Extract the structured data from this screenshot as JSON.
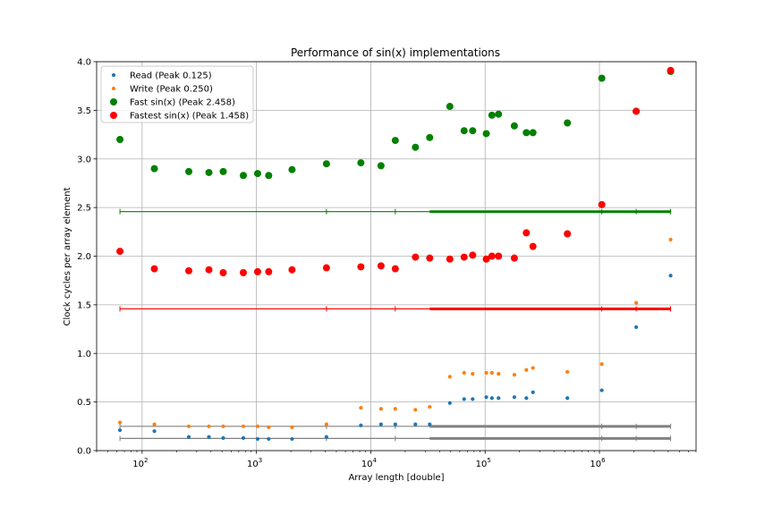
{
  "chart_data": {
    "type": "scatter",
    "title": "Performance of sin(x) implementations",
    "xlabel": "Array length [double]",
    "ylabel": "Clock cycles per array element",
    "xscale": "log",
    "xlim": [
      40,
      7000000
    ],
    "ylim": [
      0,
      4.0
    ],
    "yticks": [
      "0.0",
      "0.5",
      "1.0",
      "1.5",
      "2.0",
      "2.5",
      "3.0",
      "3.5",
      "4.0"
    ],
    "xticks": [
      {
        "value": 100,
        "base": "10",
        "exp": "2"
      },
      {
        "value": 1000,
        "base": "10",
        "exp": "3"
      },
      {
        "value": 10000,
        "base": "10",
        "exp": "4"
      },
      {
        "value": 100000,
        "base": "10",
        "exp": "5"
      },
      {
        "value": 1000000,
        "base": "10",
        "exp": "6"
      }
    ],
    "grid": true,
    "legend_position": "top-left",
    "x": [
      64,
      128,
      256,
      384,
      512,
      768,
      1024,
      1280,
      2048,
      4096,
      8192,
      12288,
      16384,
      24576,
      32768,
      49152,
      65536,
      77824,
      102400,
      114688,
      131072,
      180224,
      229376,
      262144,
      524288,
      1048576,
      2097152,
      4194304
    ],
    "series": [
      {
        "name": "Read (Peak 0.125)",
        "color": "#1f77b4",
        "marker": "small",
        "values": [
          0.21,
          0.2,
          0.14,
          0.14,
          0.13,
          0.13,
          0.12,
          0.12,
          0.12,
          0.14,
          0.26,
          0.27,
          0.27,
          0.27,
          0.27,
          0.49,
          0.53,
          0.53,
          0.55,
          0.54,
          0.54,
          0.55,
          0.54,
          0.6,
          0.54,
          0.62,
          1.27,
          1.8
        ],
        "peak": 0.125
      },
      {
        "name": "Write (Peak 0.250)",
        "color": "#ff7f0e",
        "marker": "small",
        "values": [
          0.29,
          0.27,
          0.25,
          0.25,
          0.25,
          0.25,
          0.25,
          0.24,
          0.24,
          0.27,
          0.44,
          0.43,
          0.43,
          0.42,
          0.45,
          0.76,
          0.8,
          0.79,
          0.8,
          0.8,
          0.79,
          0.78,
          0.83,
          0.85,
          0.81,
          0.89,
          1.52,
          2.17
        ],
        "peak": 0.25
      },
      {
        "name": "Fast sin(x) (Peak 2.458)",
        "color": "#008000",
        "marker": "large",
        "values": [
          3.2,
          2.9,
          2.87,
          2.86,
          2.87,
          2.83,
          2.85,
          2.83,
          2.89,
          2.95,
          2.96,
          2.93,
          3.19,
          3.12,
          3.22,
          3.54,
          3.29,
          3.29,
          3.26,
          3.45,
          3.46,
          3.34,
          3.27,
          3.27,
          3.37,
          3.83,
          3.49,
          3.9
        ],
        "peak": 2.458
      },
      {
        "name": "Fastest sin(x) (Peak 1.458)",
        "color": "#ff0000",
        "marker": "large",
        "values": [
          2.05,
          1.87,
          1.85,
          1.86,
          1.83,
          1.83,
          1.84,
          1.84,
          1.86,
          1.88,
          1.89,
          1.9,
          1.87,
          1.99,
          1.98,
          1.97,
          1.99,
          2.01,
          1.97,
          2.0,
          2.0,
          1.98,
          2.24,
          2.1,
          2.23,
          2.53,
          3.49,
          3.91
        ],
        "peak": 1.458
      }
    ]
  }
}
